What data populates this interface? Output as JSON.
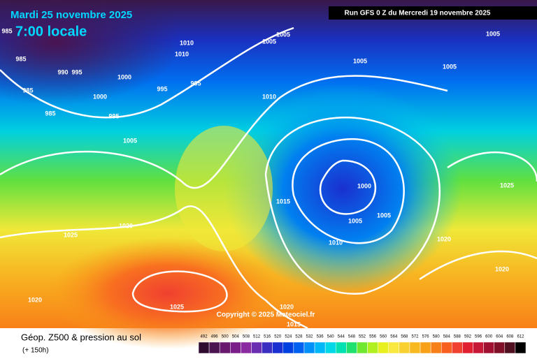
{
  "header": {
    "valid_date": "Mardi 25 novembre 2025",
    "valid_time": "7:00 locale",
    "run": "Run GFS 0 Z du Mercredi 19 novembre 2025"
  },
  "map": {
    "isobar_labels": [
      "985",
      "985",
      "985",
      "985",
      "990",
      "995",
      "995",
      "995",
      "995",
      "1000",
      "1000",
      "1000",
      "1005",
      "1005",
      "1005",
      "1005",
      "1005",
      "1005",
      "1005",
      "1005",
      "1010",
      "1010",
      "1010",
      "1010",
      "1015",
      "1015",
      "1020",
      "1020",
      "1020",
      "1020",
      "1020",
      "1025",
      "1025",
      "1025"
    ],
    "copyright": "Copyright © 2025 Meteociel.fr"
  },
  "legend": {
    "title": "Géop. Z500 & pression au sol",
    "lead": "(+ 150h)",
    "scale": {
      "values": [
        492,
        496,
        500,
        504,
        508,
        512,
        516,
        520,
        524,
        528,
        532,
        536,
        540,
        544,
        548,
        552,
        556,
        560,
        564,
        568,
        572,
        576,
        580,
        584,
        588,
        592,
        596,
        600,
        604,
        608,
        612
      ],
      "colors": [
        "#2d0a2e",
        "#4b1450",
        "#6a1a6e",
        "#7a1f8a",
        "#8a2aa0",
        "#6a2fb0",
        "#3a2fc0",
        "#1a30d0",
        "#0040e0",
        "#0060f0",
        "#0090f8",
        "#00b8f8",
        "#00d8e8",
        "#00e0b0",
        "#20e070",
        "#70e830",
        "#b0f020",
        "#e8f020",
        "#f8e840",
        "#f8d030",
        "#f8b820",
        "#f8a018",
        "#f88018",
        "#f86020",
        "#f04030",
        "#e02030",
        "#c81838",
        "#a01030",
        "#801028",
        "#501020",
        "#000000"
      ]
    }
  }
}
